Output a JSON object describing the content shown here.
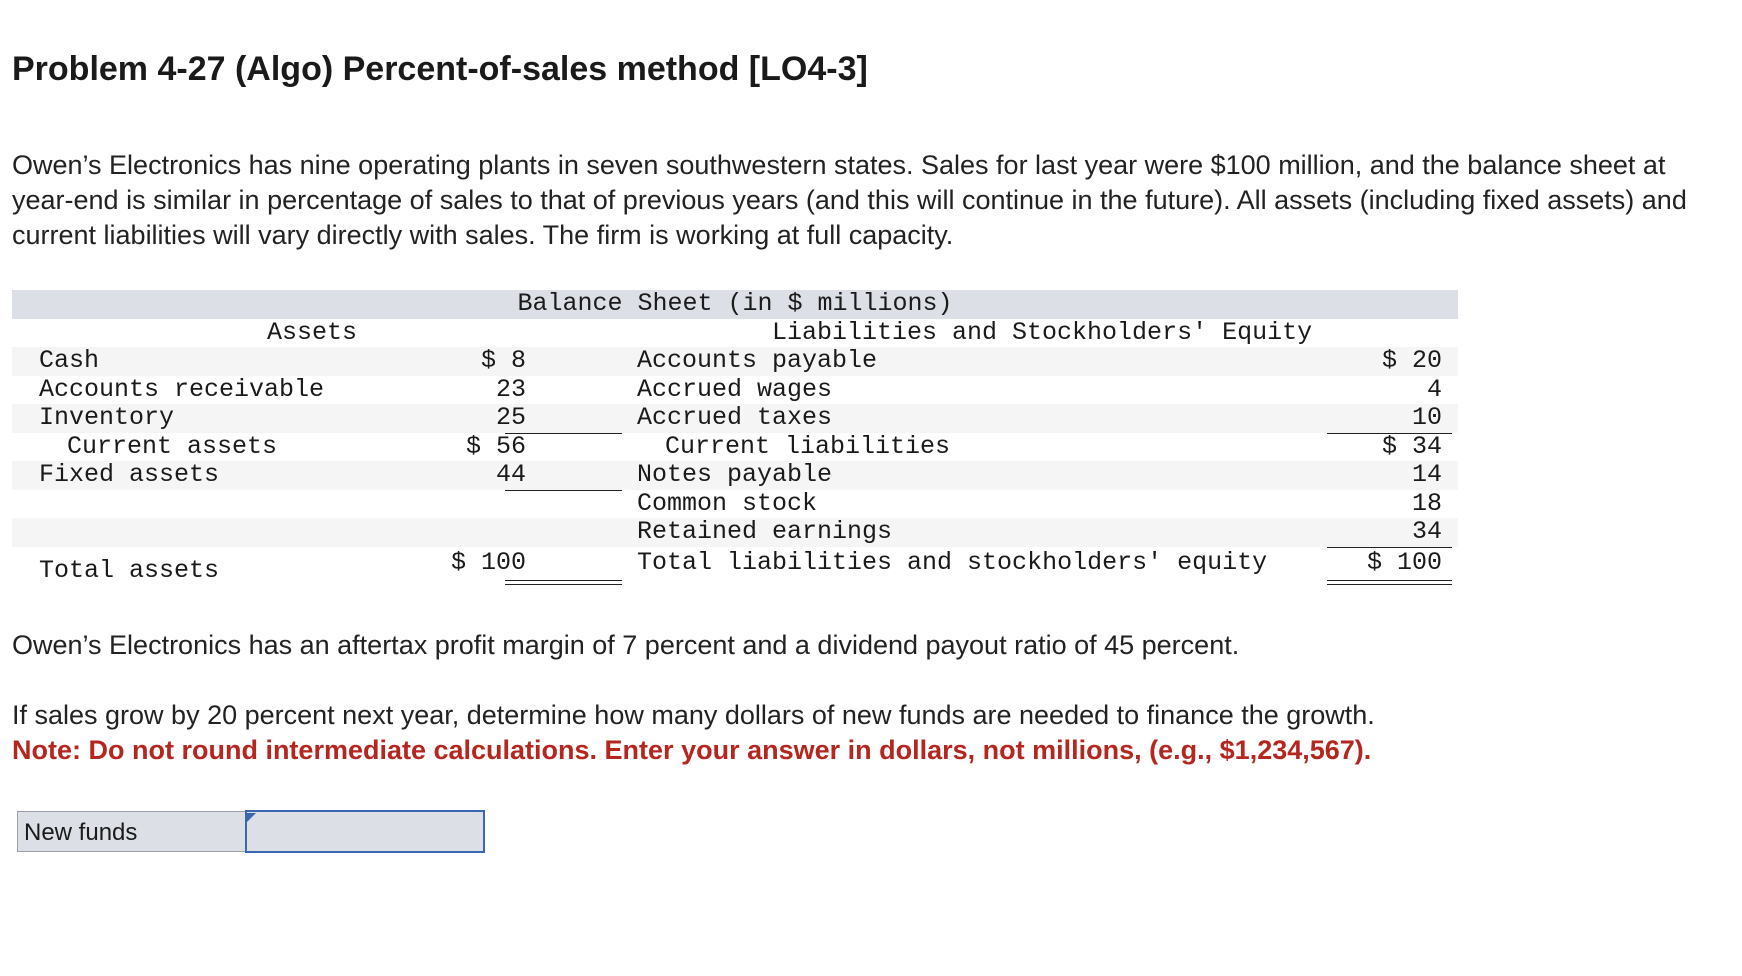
{
  "title": "Problem 4-27 (Algo) Percent-of-sales method [LO4-3]",
  "intro": "Owen’s Electronics has nine operating plants in seven southwestern states. Sales for last year were $100 million, and the balance sheet at year-end is similar in percentage of sales to that of previous years (and this will continue in the future). All assets (including fixed assets) and current liabilities will vary directly with sales. The firm is working at full capacity.",
  "balance_sheet": {
    "title": "Balance Sheet (in $ millions)",
    "assets_header": "Assets",
    "liab_header": "Liabilities and Stockholders' Equity",
    "rows": [
      {
        "asset": "Cash",
        "aval": "$ 8",
        "liab": "Accounts payable",
        "lval": "$ 20"
      },
      {
        "asset": "Accounts receivable",
        "aval": "23",
        "liab": "Accrued wages",
        "lval": "4"
      },
      {
        "asset": "Inventory",
        "aval": "25",
        "liab": "Accrued taxes",
        "lval": "10"
      },
      {
        "asset": "Current assets",
        "aval": "$ 56",
        "liab": "Current liabilities",
        "lval": "$ 34"
      },
      {
        "asset": "Fixed assets",
        "aval": "44",
        "liab": "Notes payable",
        "lval": "14"
      },
      {
        "asset": "",
        "aval": "",
        "liab": "Common stock",
        "lval": "18"
      },
      {
        "asset": "",
        "aval": "",
        "liab": "Retained earnings",
        "lval": "34"
      }
    ],
    "total_assets_label": "Total assets",
    "total_assets_value": "$ 100",
    "total_liab_label": "Total liabilities and stockholders' equity",
    "total_liab_value": "$ 100"
  },
  "margin_text": "Owen’s Electronics has an aftertax profit margin of 7 percent and a dividend payout ratio of 45 percent.",
  "question": "If sales grow by 20 percent next year, determine how many dollars of new funds are needed to finance the growth.",
  "note": "Note: Do not round intermediate calculations. Enter your answer in dollars, not millions, (e.g., $1,234,567).",
  "answer": {
    "label": "New funds",
    "value": ""
  },
  "colors": {
    "note_red": "#b5261e",
    "header_gray": "#dcdfe6",
    "input_border": "#3b66b0"
  }
}
